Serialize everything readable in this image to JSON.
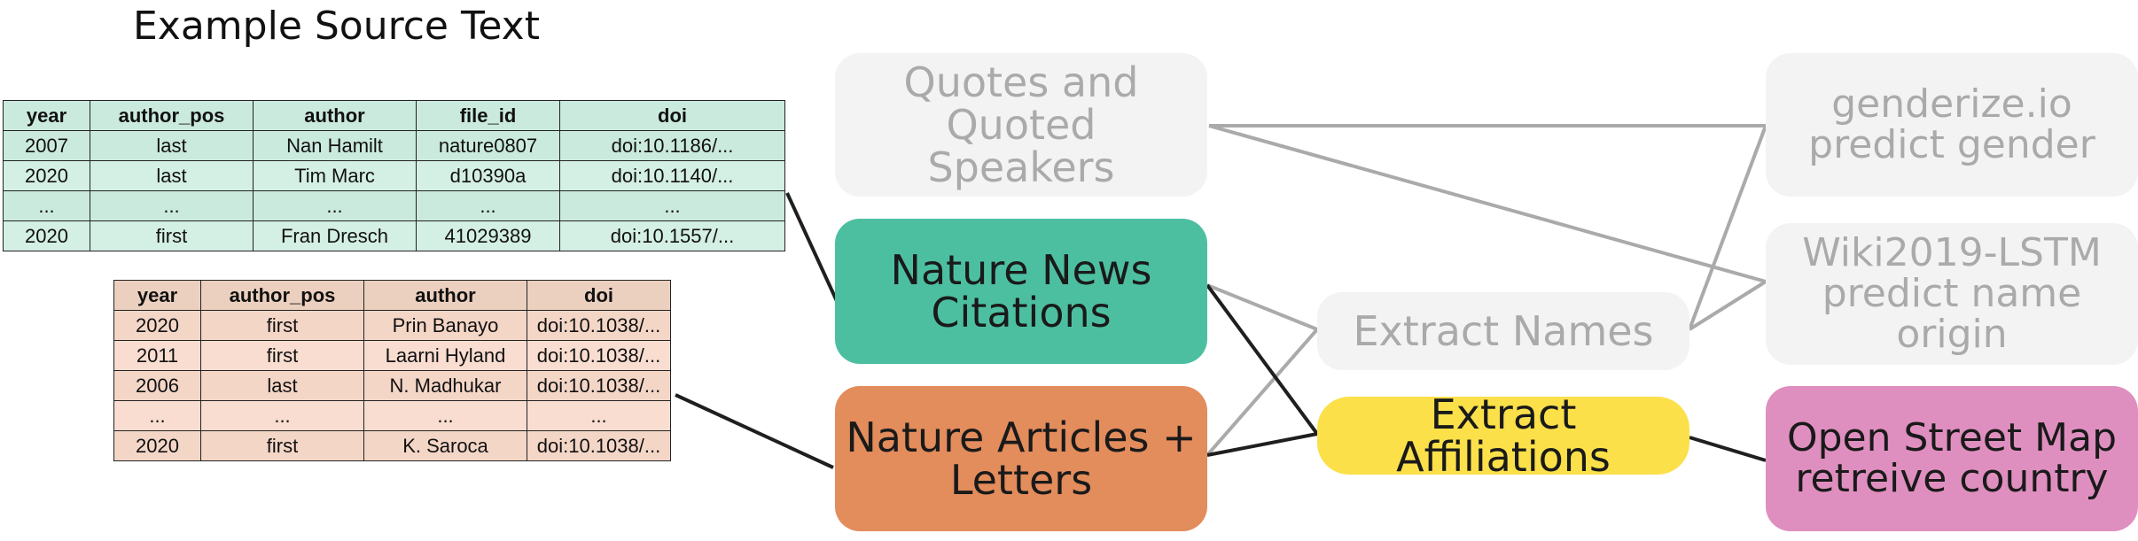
{
  "title": "Example Source Text",
  "green_table": {
    "headers": [
      "year",
      "author_pos",
      "author",
      "file_id",
      "doi"
    ],
    "rows": [
      [
        "2007",
        "last",
        "Nan Hamilt",
        "nature0807",
        "doi:10.1186/..."
      ],
      [
        "2020",
        "last",
        "Tim Marc",
        "d10390a",
        "doi:10.1140/..."
      ],
      [
        "...",
        "...",
        "...",
        "...",
        "..."
      ],
      [
        "2020",
        "first",
        "Fran Dresch",
        "41029389",
        "doi:10.1557/..."
      ]
    ]
  },
  "orange_table": {
    "headers": [
      "year",
      "author_pos",
      "author",
      "doi"
    ],
    "rows": [
      [
        "2020",
        "first",
        "Prin Banayo",
        "doi:10.1038/..."
      ],
      [
        "2011",
        "first",
        "Laarni Hyland",
        "doi:10.1038/..."
      ],
      [
        "2006",
        "last",
        "N. Madhukar",
        "doi:10.1038/..."
      ],
      [
        "...",
        "...",
        "...",
        "..."
      ],
      [
        "2020",
        "first",
        "K. Saroca",
        "doi:10.1038/..."
      ]
    ]
  },
  "nodes": {
    "quotes": [
      "Quotes and Quoted",
      "Speakers"
    ],
    "news": [
      "Nature News",
      "Citations"
    ],
    "articles": [
      "Nature Articles +",
      "Letters"
    ],
    "names": [
      "Extract Names"
    ],
    "affil": [
      "Extract Affiliations"
    ],
    "genderize": [
      "genderize.io",
      "predict gender"
    ],
    "wiki": [
      "Wiki2019-LSTM",
      "predict name origin"
    ],
    "osm": [
      "Open Street Map",
      "retreive country"
    ]
  },
  "colors": {
    "news": "#4dbfa1",
    "articles": "#e38c5c",
    "affil": "#fbe04a",
    "osm": "#df8fbf",
    "faded_bg": "#f3f3f3",
    "faded_text": "#aaaaaa",
    "green_table": "#cbeade",
    "orange_table": "#f4d6c7"
  }
}
